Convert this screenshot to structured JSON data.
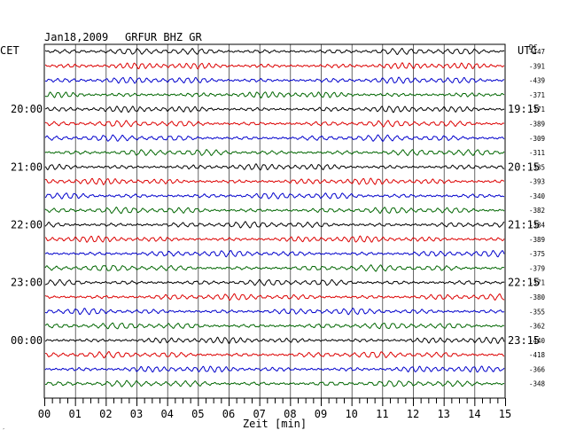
{
  "header": {
    "date": "Jan18,2009",
    "station": "GRFUR BHZ GR",
    "left_zone": "CET",
    "right_zone": "UTC",
    "dc_label": "DC"
  },
  "footer": {
    "x_axis_label": "Zeit [min]",
    "corner_mark": "′"
  },
  "colors": {
    "trace_cycle": [
      "#000000",
      "#dd0000",
      "#0000cc",
      "#006600"
    ],
    "grid": "#000000"
  },
  "chart_data": {
    "type": "line",
    "title": "Jan18,2009 GRFUR BHZ GR",
    "xlabel": "Zeit [min]",
    "x_ticks": [
      "00",
      "01",
      "02",
      "03",
      "04",
      "05",
      "06",
      "07",
      "08",
      "09",
      "10",
      "11",
      "12",
      "13",
      "14",
      "15"
    ],
    "xlim": [
      0,
      15
    ],
    "rows": 24,
    "row_minutes": 15,
    "left_time_labels": [
      {
        "row": 4,
        "text": "20:00"
      },
      {
        "row": 8,
        "text": "21:00"
      },
      {
        "row": 12,
        "text": "22:00"
      },
      {
        "row": 16,
        "text": "23:00"
      },
      {
        "row": 20,
        "text": "00:00"
      }
    ],
    "right_time_labels": [
      {
        "row": 4,
        "text": "19:15"
      },
      {
        "row": 8,
        "text": "20:15"
      },
      {
        "row": 12,
        "text": "21:15"
      },
      {
        "row": 16,
        "text": "22:15"
      },
      {
        "row": 20,
        "text": "23:15"
      }
    ],
    "dc_offsets": [
      "-447",
      "-391",
      "-439",
      "-371",
      "-371",
      "-389",
      "-309",
      "-311",
      "-335",
      "-393",
      "-340",
      "-382",
      "-384",
      "-389",
      "-375",
      "-379",
      "-371",
      "-380",
      "-355",
      "-362",
      "-440",
      "-418",
      "-366",
      "-348"
    ],
    "grid": true
  }
}
